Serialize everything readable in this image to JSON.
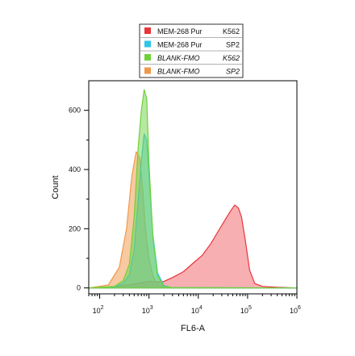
{
  "chart_data": {
    "type": "area",
    "xlabel": "FL6-A",
    "ylabel": "Count",
    "xscale": "log",
    "xlim": [
      60,
      1000000
    ],
    "ylim": [
      -20,
      700
    ],
    "x_tick_labels": [
      {
        "base": "10",
        "exp": "2",
        "value": 100
      },
      {
        "base": "10",
        "exp": "3",
        "value": 1000
      },
      {
        "base": "10",
        "exp": "4",
        "value": 10000
      },
      {
        "base": "10",
        "exp": "5",
        "value": 100000
      },
      {
        "base": "10",
        "exp": "6",
        "value": 1000000
      }
    ],
    "y_ticks": [
      0,
      200,
      400,
      600
    ],
    "y_tick_labels": [
      "0",
      "200",
      "400",
      "600"
    ],
    "grid": false,
    "legend_position": "top",
    "series": [
      {
        "name": "MEM-268 Pur",
        "cells": "K562",
        "italic": false,
        "color": "#e8353b",
        "fill": "rgba(240,96,100,0.5)",
        "x": [
          60,
          150,
          300,
          600,
          1000,
          1500,
          2000,
          3000,
          5000,
          8000,
          12000,
          18000,
          25000,
          35000,
          45000,
          55000,
          65000,
          75000,
          90000,
          110000,
          140000,
          200000,
          400000,
          1000000
        ],
        "y": [
          0,
          3,
          7,
          15,
          22,
          20,
          22,
          35,
          55,
          85,
          110,
          150,
          190,
          230,
          260,
          280,
          270,
          240,
          160,
          60,
          15,
          5,
          2,
          0
        ]
      },
      {
        "name": "MEM-268 Pur",
        "cells": "SP2",
        "italic": false,
        "color": "#2fc6e8",
        "fill": "rgba(70,200,230,0.5)",
        "x": [
          60,
          200,
          300,
          400,
          500,
          600,
          700,
          800,
          900,
          1000,
          1200,
          1500,
          2000,
          3000,
          1000000
        ],
        "y": [
          0,
          3,
          15,
          45,
          130,
          290,
          430,
          520,
          500,
          380,
          180,
          50,
          8,
          1,
          0
        ]
      },
      {
        "name": "BLANK-FMO",
        "cells": "K562",
        "italic": true,
        "color": "#6fd23a",
        "fill": "rgba(110,210,70,0.5)",
        "x": [
          60,
          200,
          300,
          400,
          500,
          600,
          700,
          800,
          900,
          1000,
          1200,
          1500,
          2000,
          3000,
          1000000
        ],
        "y": [
          0,
          5,
          25,
          80,
          240,
          470,
          600,
          670,
          640,
          420,
          170,
          40,
          6,
          1,
          0
        ]
      },
      {
        "name": "BLANK-FMO",
        "cells": "SP2",
        "italic": true,
        "color": "#ee9a4a",
        "fill": "rgba(240,150,70,0.5)",
        "x": [
          60,
          150,
          250,
          350,
          450,
          550,
          650,
          750,
          850,
          1000,
          1200,
          1500,
          2000,
          3000,
          1000000
        ],
        "y": [
          0,
          10,
          70,
          200,
          380,
          460,
          440,
          330,
          200,
          100,
          40,
          12,
          3,
          0,
          0
        ]
      }
    ]
  }
}
